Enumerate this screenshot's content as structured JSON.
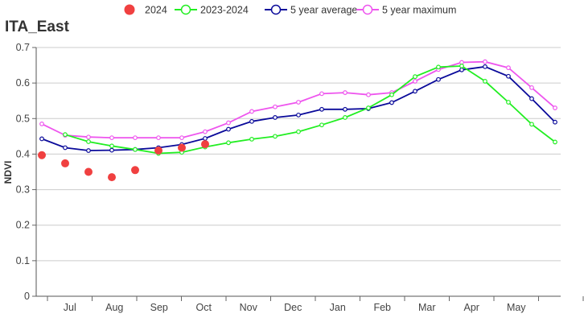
{
  "chart_data": {
    "type": "line",
    "title": "ITA_East",
    "ylabel": "NDVI",
    "xlabel": "",
    "ylim": [
      0,
      0.7
    ],
    "yticks": [
      0,
      0.1,
      0.2,
      0.3,
      0.4,
      0.5,
      0.6,
      0.7
    ],
    "xticks": [
      "Jul",
      "Aug",
      "Sep",
      "Oct",
      "Nov",
      "Dec",
      "Jan",
      "Feb",
      "Mar",
      "Apr",
      "May"
    ],
    "grid": "horizontal",
    "legend": "top-center",
    "series": [
      {
        "name": "2024",
        "style": "dots",
        "color": "#f04040",
        "points": [
          {
            "dekad": 0,
            "value": 0.397
          },
          {
            "dekad": 1,
            "value": 0.374
          },
          {
            "dekad": 2,
            "value": 0.35
          },
          {
            "dekad": 3,
            "value": 0.335
          },
          {
            "dekad": 4,
            "value": 0.355
          },
          {
            "dekad": 5,
            "value": 0.41
          },
          {
            "dekad": 6,
            "value": 0.418
          },
          {
            "dekad": 7,
            "value": 0.428
          }
        ]
      },
      {
        "name": "2023-2024",
        "style": "line",
        "color": "#22ee22",
        "points": [
          {
            "dekad": 1,
            "value": 0.455
          },
          {
            "dekad": 2,
            "value": 0.435
          },
          {
            "dekad": 3,
            "value": 0.423
          },
          {
            "dekad": 4,
            "value": 0.413
          },
          {
            "dekad": 5,
            "value": 0.402
          },
          {
            "dekad": 6,
            "value": 0.405
          },
          {
            "dekad": 7,
            "value": 0.42
          },
          {
            "dekad": 8,
            "value": 0.432
          },
          {
            "dekad": 9,
            "value": 0.442
          },
          {
            "dekad": 10,
            "value": 0.45
          },
          {
            "dekad": 11,
            "value": 0.463
          },
          {
            "dekad": 12,
            "value": 0.482
          },
          {
            "dekad": 13,
            "value": 0.503
          },
          {
            "dekad": 14,
            "value": 0.53
          },
          {
            "dekad": 15,
            "value": 0.567
          },
          {
            "dekad": 16,
            "value": 0.618
          },
          {
            "dekad": 17,
            "value": 0.645
          },
          {
            "dekad": 18,
            "value": 0.648
          },
          {
            "dekad": 19,
            "value": 0.605
          },
          {
            "dekad": 20,
            "value": 0.546
          },
          {
            "dekad": 21,
            "value": 0.484
          },
          {
            "dekad": 22,
            "value": 0.434
          }
        ]
      },
      {
        "name": "5 year average",
        "style": "line",
        "color": "#0a0a9a",
        "points": [
          {
            "dekad": 0,
            "value": 0.443
          },
          {
            "dekad": 1,
            "value": 0.418
          },
          {
            "dekad": 2,
            "value": 0.41
          },
          {
            "dekad": 3,
            "value": 0.411
          },
          {
            "dekad": 4,
            "value": 0.413
          },
          {
            "dekad": 5,
            "value": 0.418
          },
          {
            "dekad": 6,
            "value": 0.427
          },
          {
            "dekad": 7,
            "value": 0.444
          },
          {
            "dekad": 8,
            "value": 0.47
          },
          {
            "dekad": 9,
            "value": 0.492
          },
          {
            "dekad": 10,
            "value": 0.503
          },
          {
            "dekad": 11,
            "value": 0.51
          },
          {
            "dekad": 12,
            "value": 0.526
          },
          {
            "dekad": 13,
            "value": 0.526
          },
          {
            "dekad": 14,
            "value": 0.528
          },
          {
            "dekad": 15,
            "value": 0.545
          },
          {
            "dekad": 16,
            "value": 0.577
          },
          {
            "dekad": 17,
            "value": 0.61
          },
          {
            "dekad": 18,
            "value": 0.637
          },
          {
            "dekad": 19,
            "value": 0.646
          },
          {
            "dekad": 20,
            "value": 0.619
          },
          {
            "dekad": 21,
            "value": 0.556
          },
          {
            "dekad": 22,
            "value": 0.49
          }
        ]
      },
      {
        "name": "5 year maximum",
        "style": "line",
        "color": "#ee55ee",
        "points": [
          {
            "dekad": 0,
            "value": 0.485
          },
          {
            "dekad": 1,
            "value": 0.453
          },
          {
            "dekad": 2,
            "value": 0.448
          },
          {
            "dekad": 3,
            "value": 0.446
          },
          {
            "dekad": 4,
            "value": 0.446
          },
          {
            "dekad": 5,
            "value": 0.446
          },
          {
            "dekad": 6,
            "value": 0.446
          },
          {
            "dekad": 7,
            "value": 0.463
          },
          {
            "dekad": 8,
            "value": 0.488
          },
          {
            "dekad": 9,
            "value": 0.52
          },
          {
            "dekad": 10,
            "value": 0.533
          },
          {
            "dekad": 11,
            "value": 0.546
          },
          {
            "dekad": 12,
            "value": 0.57
          },
          {
            "dekad": 13,
            "value": 0.573
          },
          {
            "dekad": 14,
            "value": 0.567
          },
          {
            "dekad": 15,
            "value": 0.573
          },
          {
            "dekad": 16,
            "value": 0.605
          },
          {
            "dekad": 17,
            "value": 0.638
          },
          {
            "dekad": 18,
            "value": 0.658
          },
          {
            "dekad": 19,
            "value": 0.66
          },
          {
            "dekad": 20,
            "value": 0.643
          },
          {
            "dekad": 21,
            "value": 0.587
          },
          {
            "dekad": 22,
            "value": 0.53
          }
        ]
      }
    ]
  }
}
